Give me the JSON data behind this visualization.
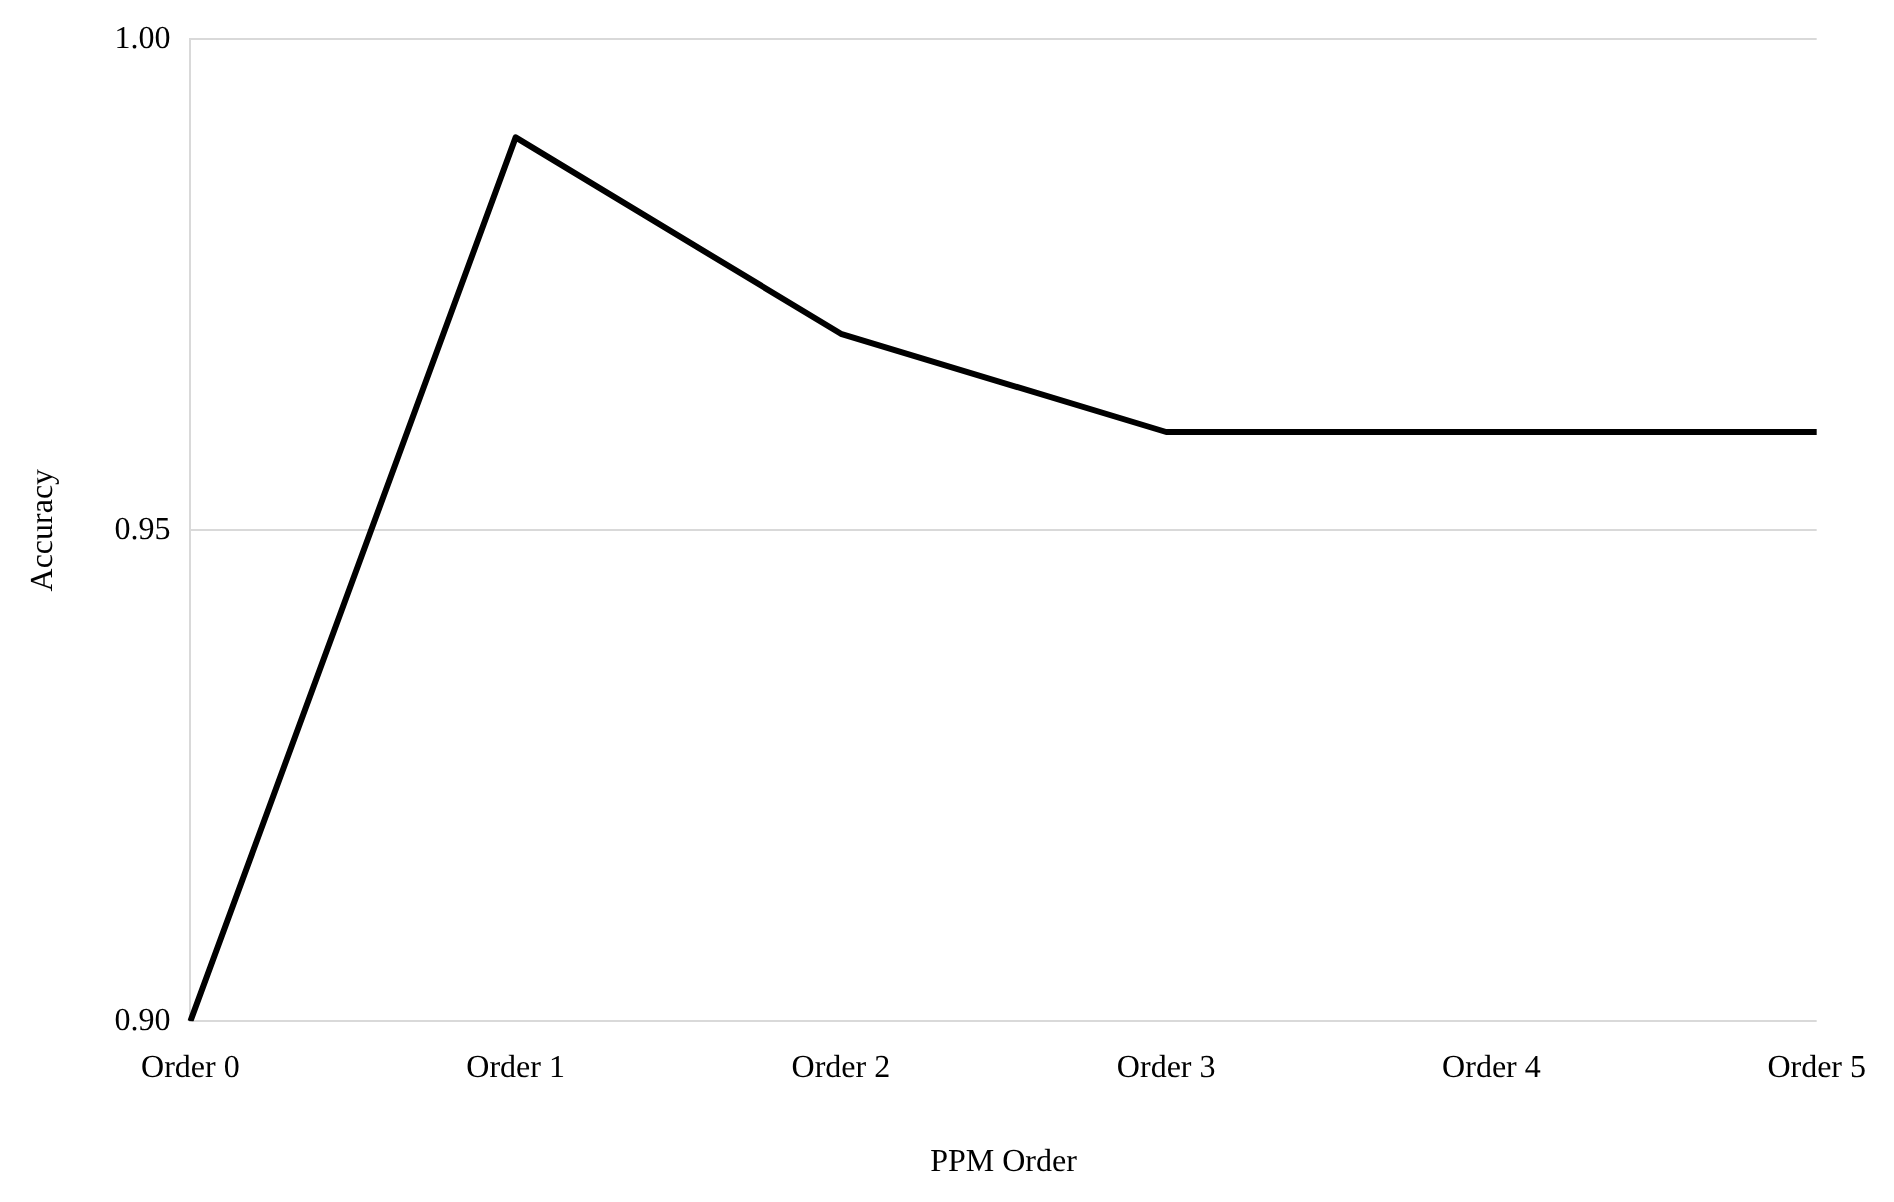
{
  "chart_data": {
    "type": "line",
    "xlabel": "PPM Order",
    "ylabel": "Accuracy",
    "categories": [
      "Order 0",
      "Order 1",
      "Order 2",
      "Order 3",
      "Order 4",
      "Order 5"
    ],
    "series": [
      {
        "color": "#000000",
        "values": [
          0.9,
          0.99,
          0.97,
          0.96,
          0.96,
          0.96
        ]
      }
    ],
    "ylim": [
      0.9,
      1.0
    ],
    "yticks": [
      {
        "value": 0.9,
        "label": "0.90"
      },
      {
        "value": 0.95,
        "label": "0.95"
      },
      {
        "value": 1.0,
        "label": "1.00"
      }
    ],
    "grid": "y",
    "legend": false,
    "marker": "none",
    "line_style": "solid"
  }
}
